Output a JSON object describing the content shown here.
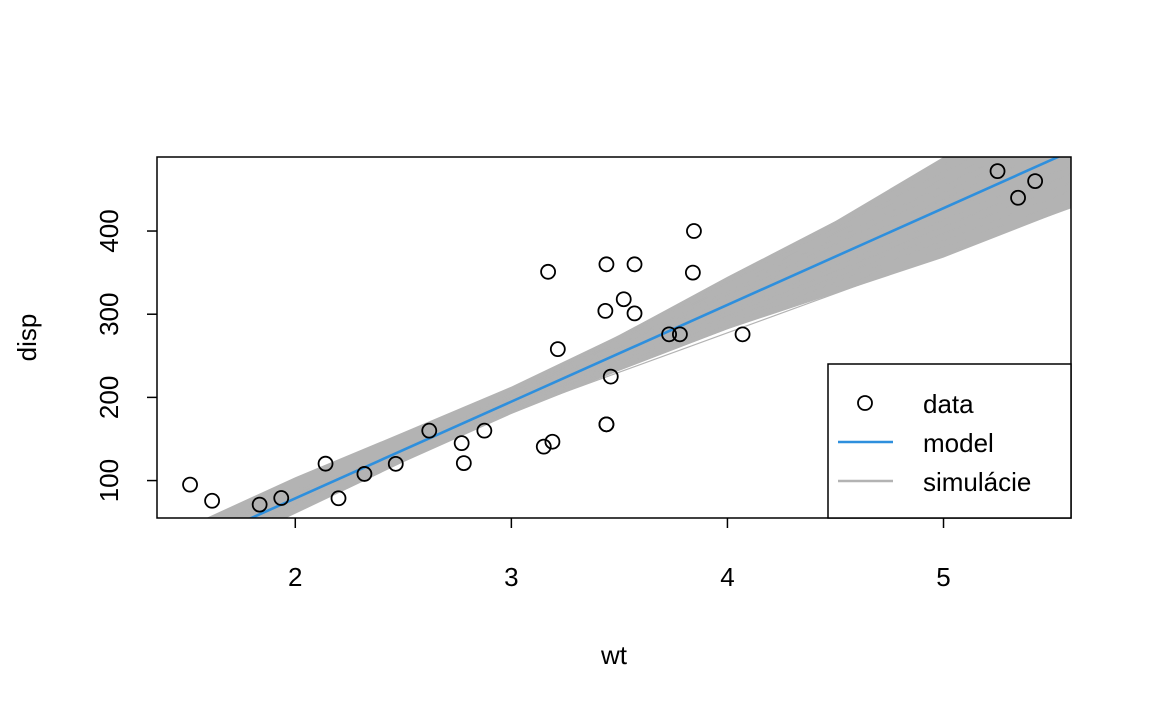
{
  "chart_data": {
    "type": "scatter",
    "title": "",
    "xlabel": "wt",
    "ylabel": "disp",
    "xlim": [
      1.36,
      5.59
    ],
    "ylim": [
      55,
      489
    ],
    "xticks": [
      2,
      3,
      4,
      5
    ],
    "yticks": [
      100,
      200,
      300,
      400
    ],
    "grid": false,
    "legend": {
      "position": "bottom-right",
      "entries": [
        {
          "label": "data",
          "kind": "point",
          "color": "#000000"
        },
        {
          "label": "model",
          "kind": "line",
          "color": "#2e8fdd"
        },
        {
          "label": "simulácie",
          "kind": "line",
          "color": "#b3b3b3"
        }
      ]
    },
    "series": [
      {
        "name": "data",
        "kind": "points",
        "color": "#000000",
        "x": [
          1.513,
          1.615,
          1.835,
          1.935,
          2.14,
          2.2,
          2.32,
          2.465,
          2.62,
          2.77,
          2.78,
          2.875,
          3.15,
          3.17,
          3.19,
          3.215,
          3.435,
          3.44,
          3.44,
          3.44,
          3.46,
          3.52,
          3.57,
          3.57,
          3.73,
          3.78,
          3.84,
          3.845,
          4.07,
          5.25,
          5.345,
          5.424
        ],
        "y": [
          95.1,
          75.7,
          71.1,
          79,
          120.3,
          78.7,
          108,
          120.1,
          160,
          145,
          121,
          160,
          140.8,
          351,
          146.7,
          258,
          304,
          167.6,
          167.6,
          360,
          225,
          318,
          360,
          301,
          275.8,
          275.8,
          350,
          400,
          275.8,
          472,
          440,
          460
        ]
      },
      {
        "name": "model",
        "kind": "line",
        "color": "#2e8fdd",
        "x": [
          1.36,
          5.59
        ],
        "y": [
          4.2,
          496.1
        ]
      },
      {
        "name": "simulácie",
        "kind": "band",
        "color": "#b3b3b3",
        "x": [
          1.36,
          2.0,
          2.5,
          3.0,
          3.5,
          4.0,
          4.5,
          5.0,
          5.59
        ],
        "lower": [
          -18,
          60,
          122,
          180,
          232,
          282,
          325,
          368,
          428
        ],
        "upper": [
          28,
          104,
          158,
          213,
          275,
          345,
          412,
          489,
          560
        ]
      }
    ]
  }
}
